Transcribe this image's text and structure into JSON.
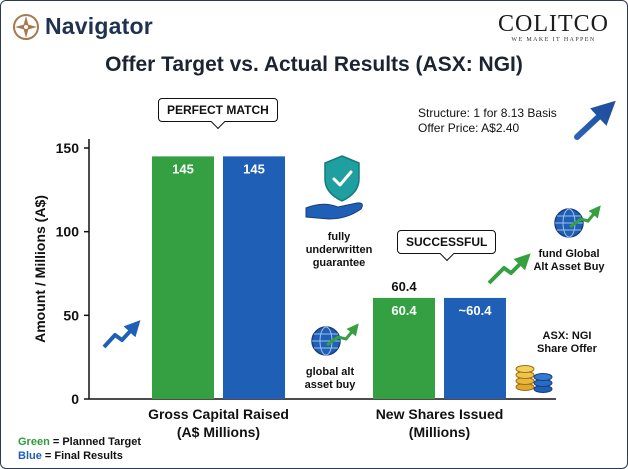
{
  "brand": {
    "name": "Navigator"
  },
  "partner": {
    "name": "COLITCO",
    "tagline": "WE MAKE IT HAPPEN"
  },
  "chart_data": {
    "type": "bar",
    "title": "Offer Target vs. Actual Results (ASX: NGI)",
    "ylabel": "Amount / Millions (A$)",
    "xlabel": "",
    "ylim": [
      0,
      150
    ],
    "yticks": [
      0,
      50,
      100,
      150
    ],
    "categories": [
      {
        "line1": "Gross Capital Raised",
        "line2": "(A$ Millions)"
      },
      {
        "line1": "New Shares Issued",
        "line2": "(Millions)"
      }
    ],
    "series": [
      {
        "name": "Planned Target",
        "color": "#35a041",
        "values": [
          145,
          60.4
        ],
        "labels": [
          "145",
          "60.4"
        ]
      },
      {
        "name": "Final Results",
        "color": "#1f5fb5",
        "values": [
          145,
          60.4
        ],
        "labels": [
          "145",
          "~60.4"
        ]
      }
    ],
    "above_label": "60.4",
    "legend": [
      {
        "key": "Green",
        "text": " = Planned Target",
        "color": "#2e9a3e"
      },
      {
        "key": "Blue",
        "text": " = Final Results",
        "color": "#1f5fb5"
      }
    ],
    "legend_position": "bottom-left",
    "grid": false
  },
  "callouts": {
    "perfect": "PERFECT MATCH",
    "successful": "SUCCESSFUL"
  },
  "info": {
    "structure": "Structure: 1 for 8.13 Basis",
    "price": "Offer Price: A$2.40"
  },
  "notes": {
    "underwritten": [
      "fully",
      "underwritten",
      "guarantee"
    ],
    "global_alt": [
      "global alt",
      "asset buy"
    ],
    "fund_global": [
      "fund Global",
      "Alt Asset Buy"
    ],
    "asx_offer": [
      "ASX: NGI",
      "Share Offer"
    ]
  },
  "icons": {
    "compass": "compass-logo-icon",
    "shield": "shield-hand-icon",
    "globe": "globe-arrow-icon",
    "coins": "coin-stack-icon",
    "trend": "trend-arrow-icon"
  }
}
